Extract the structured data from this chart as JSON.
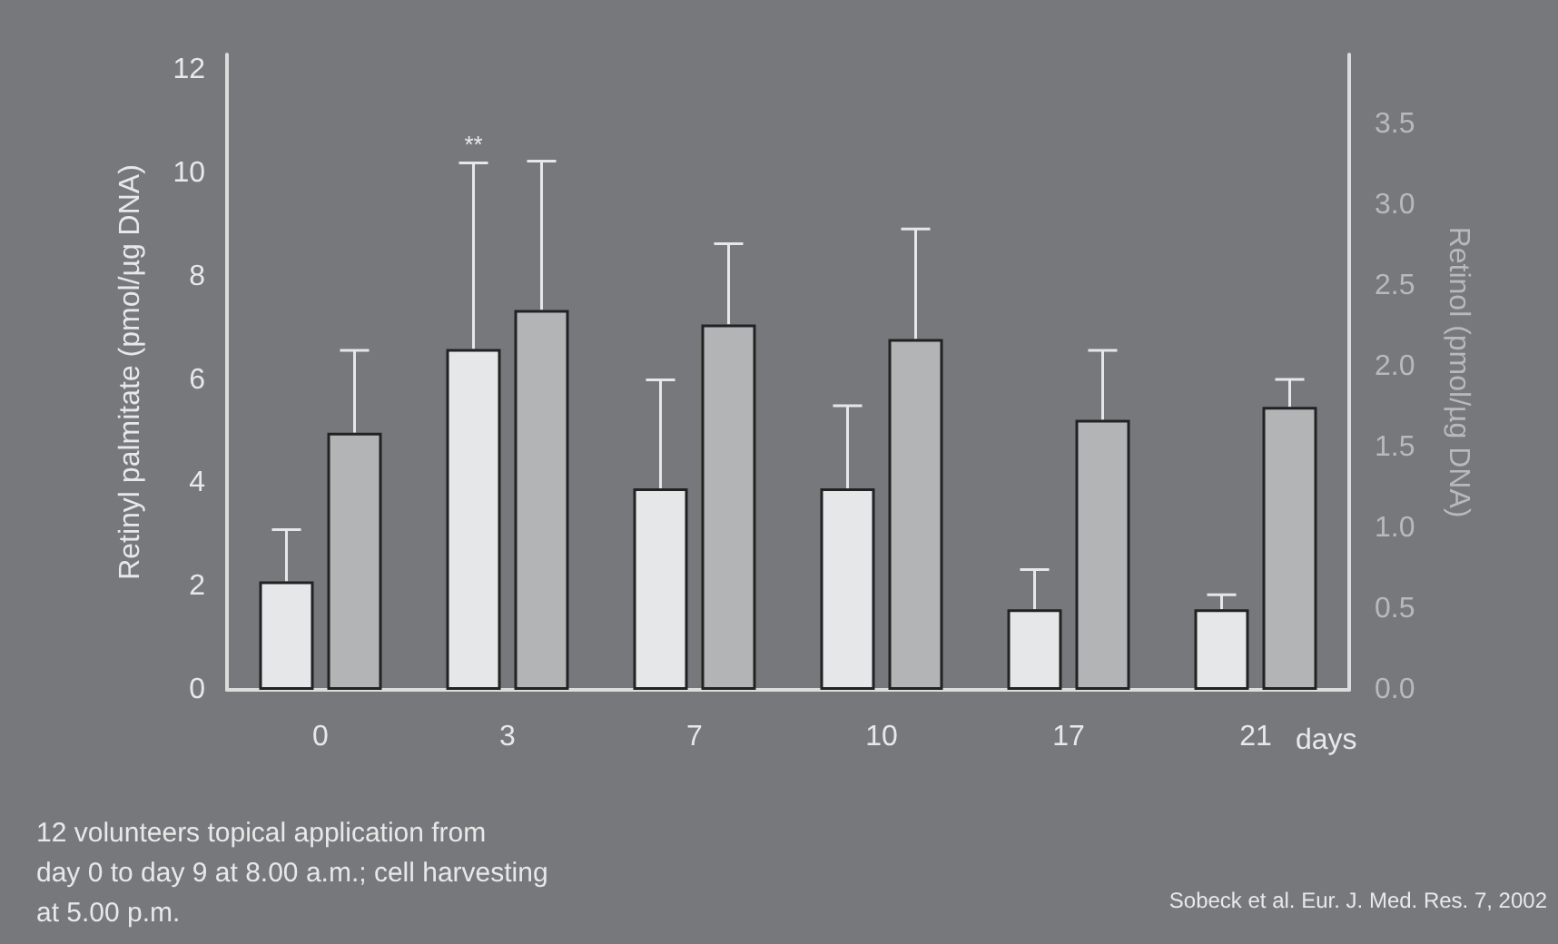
{
  "chart_data": {
    "type": "bar",
    "categories": [
      "0",
      "3",
      "7",
      "10",
      "17",
      "21"
    ],
    "xlabel": "days",
    "ylabel": "Retinyl palmitate (pmol/µg DNA)",
    "y2label": "Retinol (pmol/µg DNA)",
    "series": [
      {
        "color": "#e6e7e9",
        "values": [
          2.1,
          6.6,
          3.9,
          3.9,
          1.56,
          1.56
        ],
        "errors": [
          [
            2.1,
            3.1
          ],
          [
            6.6,
            10.2
          ],
          [
            3.9,
            6.0
          ],
          [
            3.9,
            5.5
          ],
          [
            1.56,
            2.33
          ],
          [
            1.56,
            1.84
          ]
        ]
      },
      {
        "color": "#b3b4b6",
        "axis": "y2",
        "values": [
          1.59,
          2.35,
          2.26,
          2.17,
          1.67,
          1.75
        ],
        "errors": [
          [
            1.59,
            2.1
          ],
          [
            2.35,
            3.27
          ],
          [
            2.26,
            2.76
          ],
          [
            2.17,
            2.85
          ],
          [
            1.67,
            2.1
          ],
          [
            1.75,
            1.92
          ]
        ]
      }
    ],
    "ylim": [
      0,
      12.3
    ],
    "yticks": [
      0,
      2,
      4,
      6,
      8,
      10,
      12
    ],
    "y2lim": [
      0,
      3.93
    ],
    "y2ticks": [
      {
        "value": 0,
        "label": "0.0"
      },
      {
        "value": 0.5,
        "label": "0.5"
      },
      {
        "value": 1,
        "label": "1.0"
      },
      {
        "value": 1.5,
        "label": "1.5"
      },
      {
        "value": 2,
        "label": "2.0"
      },
      {
        "value": 2.5,
        "label": "2.5"
      },
      {
        "value": 3,
        "label": "3.0"
      },
      {
        "value": 3.5,
        "label": "3.5"
      }
    ],
    "grid": false,
    "annotations": [
      "**",
      "12 volunteers topical application from\nday 0 to day 9 at 8.00 a.m.; cell harvesting\nat 5.00 p.m.",
      "Sobeck et al. Eur. J. Med. Res. 7, 2002"
    ]
  }
}
